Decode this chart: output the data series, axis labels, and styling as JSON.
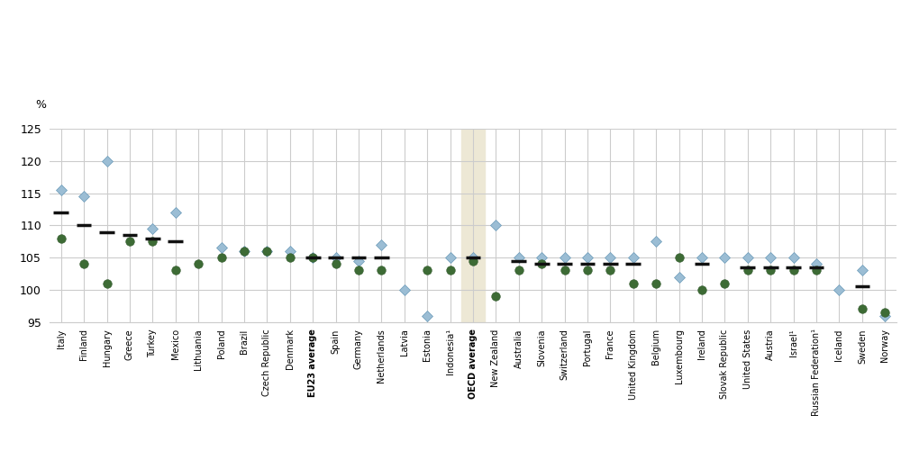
{
  "countries": [
    "Italy",
    "Finland",
    "Hungary",
    "Greece",
    "Turkey",
    "Mexico",
    "Lithuania",
    "Poland",
    "Brazil",
    "Czech Republic",
    "Denmark",
    "EU23 average",
    "Spain",
    "Germany",
    "Netherlands",
    "Latvia",
    "Estonia",
    "Indonesia¹",
    "OECD average",
    "New Zealand",
    "Australia",
    "Slovenia",
    "Switzerland",
    "Portugal",
    "France",
    "United Kingdom",
    "Belgium",
    "Luxembourg",
    "Ireland",
    "Slovak Republic",
    "United States",
    "Austria",
    "Israel¹",
    "Russian Federation¹",
    "Iceland",
    "Sweden",
    "Norway"
  ],
  "men": [
    108.0,
    104.0,
    101.0,
    107.5,
    107.5,
    103.0,
    104.0,
    105.0,
    106.0,
    106.0,
    105.0,
    105.0,
    104.0,
    103.0,
    103.0,
    null,
    103.0,
    103.0,
    104.5,
    99.0,
    103.0,
    104.0,
    103.0,
    103.0,
    103.0,
    101.0,
    101.0,
    105.0,
    100.0,
    101.0,
    103.0,
    103.0,
    103.0,
    103.0,
    null,
    97.0,
    96.5
  ],
  "women": [
    115.5,
    114.5,
    120.0,
    null,
    109.5,
    112.0,
    null,
    106.5,
    106.0,
    106.0,
    106.0,
    105.0,
    105.0,
    104.5,
    107.0,
    100.0,
    96.0,
    105.0,
    105.0,
    110.0,
    105.0,
    105.0,
    105.0,
    105.0,
    105.0,
    105.0,
    107.5,
    102.0,
    105.0,
    105.0,
    105.0,
    105.0,
    105.0,
    104.0,
    100.0,
    103.0,
    96.0
  ],
  "total": [
    112.0,
    110.0,
    109.0,
    108.5,
    108.0,
    107.5,
    null,
    null,
    null,
    null,
    null,
    105.0,
    105.0,
    105.0,
    105.0,
    null,
    null,
    null,
    105.0,
    null,
    104.5,
    104.0,
    104.0,
    104.0,
    104.0,
    104.0,
    null,
    null,
    104.0,
    null,
    103.5,
    103.5,
    103.5,
    103.5,
    null,
    100.5,
    null
  ],
  "oecd_idx": 18,
  "highlight_color": "#ede8d5",
  "men_color": "#3d6b35",
  "women_color": "#9bbdd4",
  "total_color": "#111111",
  "ylabel": "%",
  "ylim": [
    95,
    125
  ],
  "yticks": [
    95,
    100,
    105,
    110,
    115,
    120,
    125
  ],
  "grid_color": "#cccccc",
  "bold_labels": [
    "EU23 average",
    "OECD average"
  ]
}
